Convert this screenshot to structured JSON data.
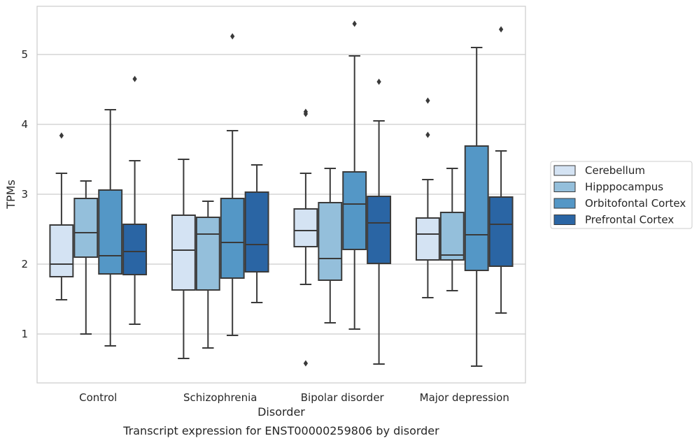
{
  "chart_data": {
    "type": "box",
    "title": "",
    "caption": "Transcript expression for ENST00000259806 by disorder",
    "xlabel": "Disorder",
    "ylabel": "TPMs",
    "ylim": [
      0.32,
      5.7
    ],
    "yticks": [
      1,
      2,
      3,
      4,
      5
    ],
    "grid": "horizontal",
    "legend_position": "right",
    "categories": [
      "Control",
      "Schizophrenia",
      "Bipolar disorder",
      "Major depression"
    ],
    "series": [
      {
        "name": "Cerebellum",
        "color": "#d4e3f3",
        "boxes": [
          {
            "whisker_low": 1.49,
            "q1": 1.82,
            "median": 2.0,
            "q3": 2.56,
            "whisker_high": 3.3,
            "outliers": [
              3.84
            ]
          },
          {
            "whisker_low": 0.65,
            "q1": 1.63,
            "median": 2.2,
            "q3": 2.7,
            "whisker_high": 3.5,
            "outliers": []
          },
          {
            "whisker_low": 1.71,
            "q1": 2.25,
            "median": 2.48,
            "q3": 2.79,
            "whisker_high": 3.3,
            "outliers": [
              4.15,
              4.18,
              0.58
            ]
          },
          {
            "whisker_low": 1.52,
            "q1": 2.06,
            "median": 2.43,
            "q3": 2.66,
            "whisker_high": 3.21,
            "outliers": [
              4.34,
              3.85
            ]
          }
        ]
      },
      {
        "name": "Hipppocampus",
        "color": "#94bfdb",
        "boxes": [
          {
            "whisker_low": 1.0,
            "q1": 2.1,
            "median": 2.45,
            "q3": 2.94,
            "whisker_high": 3.19,
            "outliers": []
          },
          {
            "whisker_low": 0.8,
            "q1": 1.63,
            "median": 2.43,
            "q3": 2.67,
            "whisker_high": 2.9,
            "outliers": []
          },
          {
            "whisker_low": 1.16,
            "q1": 1.77,
            "median": 2.08,
            "q3": 2.88,
            "whisker_high": 3.37,
            "outliers": []
          },
          {
            "whisker_low": 1.62,
            "q1": 2.06,
            "median": 2.13,
            "q3": 2.74,
            "whisker_high": 3.37,
            "outliers": []
          }
        ]
      },
      {
        "name": "Orbitofontal Cortex",
        "color": "#5497c6",
        "boxes": [
          {
            "whisker_low": 0.83,
            "q1": 1.86,
            "median": 2.12,
            "q3": 3.06,
            "whisker_high": 4.21,
            "outliers": []
          },
          {
            "whisker_low": 0.98,
            "q1": 1.8,
            "median": 2.31,
            "q3": 2.94,
            "whisker_high": 3.91,
            "outliers": [
              5.26
            ]
          },
          {
            "whisker_low": 1.07,
            "q1": 2.21,
            "median": 2.86,
            "q3": 3.32,
            "whisker_high": 4.98,
            "outliers": [
              5.44
            ]
          },
          {
            "whisker_low": 0.54,
            "q1": 1.91,
            "median": 2.42,
            "q3": 3.69,
            "whisker_high": 5.1,
            "outliers": []
          }
        ]
      },
      {
        "name": "Prefrontal Cortex",
        "color": "#2a65a4",
        "boxes": [
          {
            "whisker_low": 1.14,
            "q1": 1.85,
            "median": 2.18,
            "q3": 2.57,
            "whisker_high": 3.48,
            "outliers": [
              4.65
            ]
          },
          {
            "whisker_low": 1.45,
            "q1": 1.89,
            "median": 2.28,
            "q3": 3.03,
            "whisker_high": 3.42,
            "outliers": []
          },
          {
            "whisker_low": 0.57,
            "q1": 2.01,
            "median": 2.59,
            "q3": 2.97,
            "whisker_high": 4.05,
            "outliers": [
              4.61
            ]
          },
          {
            "whisker_low": 1.3,
            "q1": 1.97,
            "median": 2.57,
            "q3": 2.96,
            "whisker_high": 3.62,
            "outliers": [
              5.36
            ]
          }
        ]
      }
    ]
  }
}
